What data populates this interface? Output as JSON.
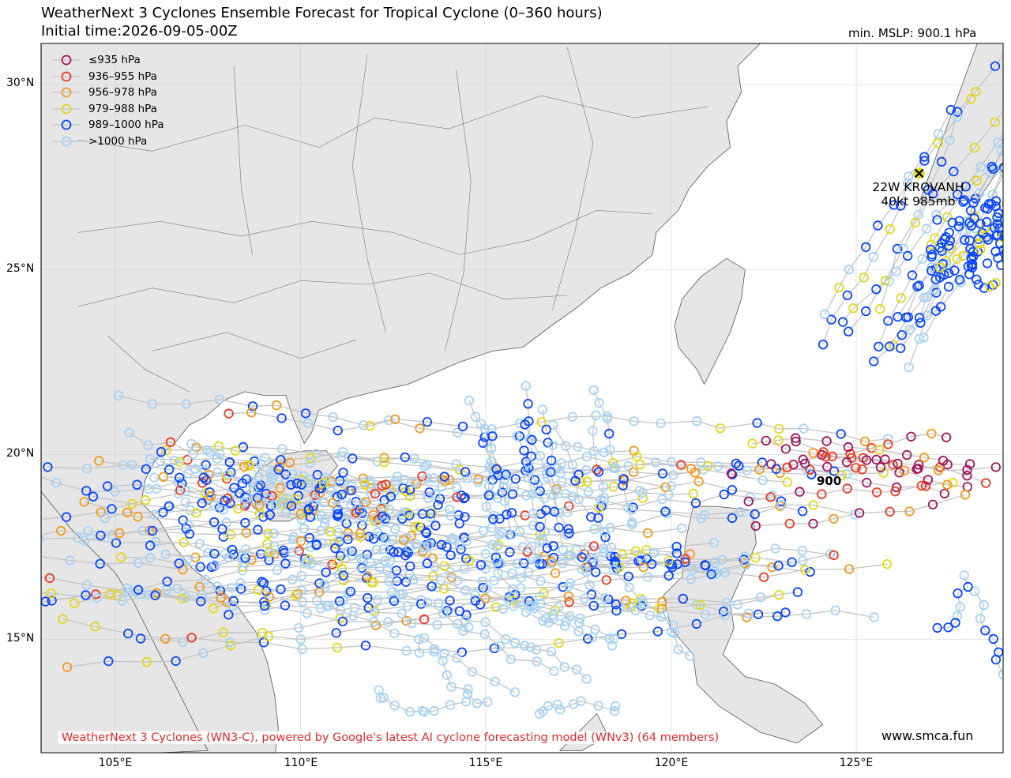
{
  "header": {
    "title": "WeatherNext 3 Cyclones Ensemble Forecast for Tropical Cyclone (0–360 hours)",
    "initial_time": "Initial time:2026-09-05-00Z",
    "min_mslp": "min. MSLP: 900.1 hPa"
  },
  "axes": {
    "lat_labels": [
      "30°N",
      "25°N",
      "20°N",
      "15°N"
    ],
    "lon_labels": [
      "105°E",
      "110°E",
      "115°E",
      "120°E",
      "125°E"
    ]
  },
  "legend": [
    {
      "label": "≤935 hPa",
      "color": "#a0165c"
    },
    {
      "label": "936–955 hPa",
      "color": "#ee3b22"
    },
    {
      "label": "956–978 hPa",
      "color": "#f39a1d"
    },
    {
      "label": "979–988 hPa",
      "color": "#e2d81c"
    },
    {
      "label": "989–1000 hPa",
      "color": "#0a47ff"
    },
    {
      "label": ">1000 hPa",
      "color": "#a5d3f7"
    }
  ],
  "storm": {
    "name": "22W KROVANH",
    "info": "40kt 985mb",
    "lon": 126.7,
    "lat": 27.6
  },
  "min_marker": {
    "label": "900",
    "lon": 124.2,
    "lat": 19.2
  },
  "footer": {
    "credit": "WeatherNext 3 Cyclones (WN3-C), powered by Google's latest AI cyclone forecasting model (WNv3) (64 members)",
    "site": "www.smca.fun"
  },
  "map_extent": {
    "lon_min": 103,
    "lon_max": 129,
    "lat_min": 12,
    "lat_max": 31
  }
}
